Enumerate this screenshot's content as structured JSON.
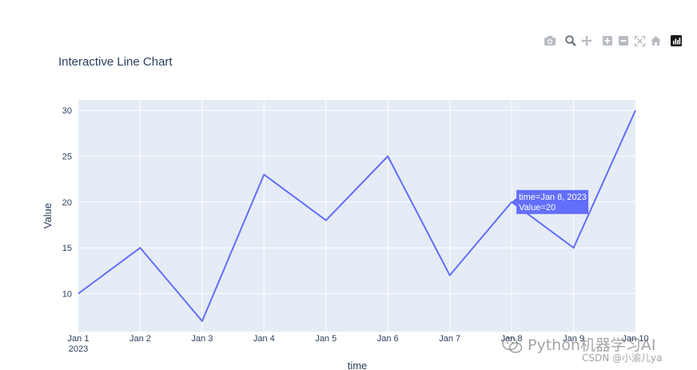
{
  "toolbar": {
    "buttons": [
      "camera-icon",
      "zoom-icon",
      "pan-icon",
      "zoom-in-icon",
      "zoom-out-icon",
      "autoscale-icon",
      "reset-axes-icon",
      "plotly-logo-icon"
    ]
  },
  "chart_data": {
    "type": "line",
    "title": "Interactive Line Chart",
    "xlabel": "time",
    "ylabel": "Value",
    "x": [
      "2023-01-01",
      "2023-01-02",
      "2023-01-03",
      "2023-01-04",
      "2023-01-05",
      "2023-01-06",
      "2023-01-07",
      "2023-01-08",
      "2023-01-09",
      "2023-01-10"
    ],
    "x_tick_labels": [
      "Jan 1",
      "Jan 2",
      "Jan 3",
      "Jan 4",
      "Jan 5",
      "Jan 6",
      "Jan 7",
      "Jan 8",
      "Jan 9",
      "Jan 10"
    ],
    "x_tick_year": "2023",
    "values": [
      10,
      15,
      7,
      23,
      18,
      25,
      12,
      20,
      15,
      30
    ],
    "ylim": [
      5.85,
      31.15
    ],
    "y_ticks": [
      10,
      15,
      20,
      25,
      30
    ],
    "grid": true,
    "line_color": "#636efa",
    "plot_bg": "#e5ecf6",
    "hover": {
      "index": 7,
      "line1": "time=Jan 8, 2023",
      "line2": "Value=20"
    }
  },
  "watermark": {
    "line1": "Python机器学习AI",
    "line2": "CSDN @小渝儿ya"
  }
}
